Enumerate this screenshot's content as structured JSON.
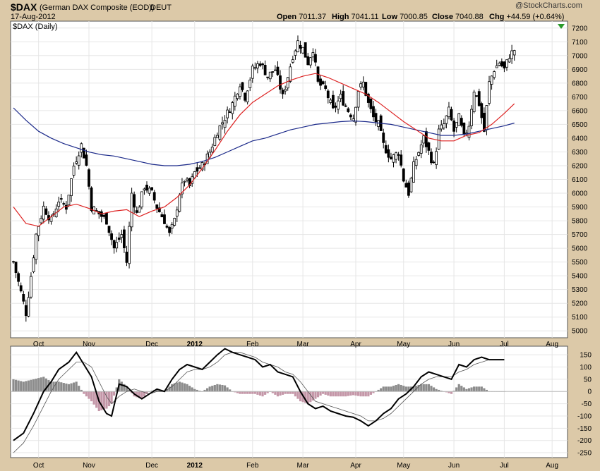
{
  "header": {
    "symbol": "$DAX",
    "name": "(German DAX Composite (EOD))",
    "exchange": "DEUT",
    "date": "17-Aug-2012",
    "open_label": "Open",
    "open": "7011.37",
    "high_label": "High",
    "high": "7041.11",
    "low_label": "Low",
    "low": "7000.85",
    "close_label": "Close",
    "close": "7040.88",
    "chg_label": "Chg",
    "chg": "+44.59 (+0.64%)",
    "watermark": "@StockCharts.com",
    "panel_label": "$DAX (Daily)"
  },
  "colors": {
    "background": "#dcc9a8",
    "panel": "#ffffff",
    "ma_fast": "#dd2222",
    "ma_slow": "#1c2a8a",
    "histogram_positive": "#8c8c8c",
    "histogram_negative": "#c497a8",
    "macd_line": "#000000",
    "signal_line": "#555555"
  },
  "chart_data": [
    {
      "type": "candlestick",
      "title": "$DAX (Daily)",
      "ylim": [
        4950,
        7250
      ],
      "yticks": [
        5000,
        5100,
        5200,
        5300,
        5400,
        5500,
        5600,
        5700,
        5800,
        5900,
        6000,
        6100,
        6200,
        6300,
        6400,
        6500,
        6600,
        6700,
        6800,
        6900,
        7000,
        7100,
        7200
      ],
      "xlabels": [
        "Oct",
        "Nov",
        "Dec",
        "2012",
        "Feb",
        "Mar",
        "Apr",
        "May",
        "Jun",
        "Jul",
        "Aug"
      ],
      "xlabel_days": [
        10,
        30,
        55,
        72,
        95,
        115,
        136,
        155,
        175,
        195,
        214
      ],
      "close_keypoints": [
        [
          0,
          5500
        ],
        [
          3,
          5280
        ],
        [
          5,
          5130
        ],
        [
          7,
          5400
        ],
        [
          9,
          5700
        ],
        [
          12,
          5900
        ],
        [
          15,
          5800
        ],
        [
          18,
          5950
        ],
        [
          21,
          5900
        ],
        [
          24,
          6200
        ],
        [
          27,
          6350
        ],
        [
          29,
          6200
        ],
        [
          31,
          5900
        ],
        [
          34,
          5850
        ],
        [
          37,
          5800
        ],
        [
          40,
          5600
        ],
        [
          43,
          5700
        ],
        [
          45,
          5500
        ],
        [
          47,
          6000
        ],
        [
          49,
          5850
        ],
        [
          52,
          6050
        ],
        [
          55,
          6000
        ],
        [
          57,
          5900
        ],
        [
          60,
          5800
        ],
        [
          62,
          5700
        ],
        [
          64,
          5800
        ],
        [
          66,
          6000
        ],
        [
          68,
          6100
        ],
        [
          70,
          6050
        ],
        [
          72,
          6150
        ],
        [
          75,
          6200
        ],
        [
          78,
          6300
        ],
        [
          81,
          6450
        ],
        [
          84,
          6550
        ],
        [
          87,
          6650
        ],
        [
          90,
          6800
        ],
        [
          92,
          6700
        ],
        [
          95,
          6900
        ],
        [
          98,
          6950
        ],
        [
          101,
          6850
        ],
        [
          104,
          6900
        ],
        [
          107,
          6700
        ],
        [
          109,
          6850
        ],
        [
          111,
          7000
        ],
        [
          113,
          7100
        ],
        [
          115,
          7050
        ],
        [
          117,
          6950
        ],
        [
          119,
          7050
        ],
        [
          121,
          6800
        ],
        [
          124,
          6750
        ],
        [
          127,
          6600
        ],
        [
          130,
          6700
        ],
        [
          133,
          6600
        ],
        [
          135,
          6550
        ],
        [
          137,
          6750
        ],
        [
          139,
          6800
        ],
        [
          141,
          6650
        ],
        [
          143,
          6550
        ],
        [
          145,
          6500
        ],
        [
          147,
          6350
        ],
        [
          150,
          6250
        ],
        [
          153,
          6300
        ],
        [
          155,
          6100
        ],
        [
          157,
          6000
        ],
        [
          159,
          6200
        ],
        [
          161,
          6300
        ],
        [
          163,
          6400
        ],
        [
          165,
          6300
        ],
        [
          167,
          6200
        ],
        [
          169,
          6450
        ],
        [
          171,
          6500
        ],
        [
          173,
          6600
        ],
        [
          175,
          6450
        ],
        [
          177,
          6550
        ],
        [
          179,
          6400
        ],
        [
          181,
          6500
        ],
        [
          183,
          6750
        ],
        [
          185,
          6650
        ],
        [
          187,
          6450
        ],
        [
          189,
          6800
        ],
        [
          191,
          6900
        ],
        [
          193,
          6950
        ],
        [
          195,
          6900
        ],
        [
          197,
          7000
        ],
        [
          199,
          7041
        ]
      ],
      "moving_average_fast": {
        "period": 50,
        "keypoints": [
          [
            0,
            5900
          ],
          [
            5,
            5780
          ],
          [
            10,
            5760
          ],
          [
            15,
            5830
          ],
          [
            20,
            5900
          ],
          [
            25,
            5920
          ],
          [
            30,
            5890
          ],
          [
            35,
            5850
          ],
          [
            40,
            5870
          ],
          [
            45,
            5880
          ],
          [
            50,
            5830
          ],
          [
            55,
            5870
          ],
          [
            60,
            5900
          ],
          [
            65,
            5970
          ],
          [
            70,
            6060
          ],
          [
            75,
            6180
          ],
          [
            80,
            6310
          ],
          [
            85,
            6450
          ],
          [
            90,
            6570
          ],
          [
            95,
            6660
          ],
          [
            100,
            6720
          ],
          [
            105,
            6780
          ],
          [
            110,
            6820
          ],
          [
            115,
            6850
          ],
          [
            120,
            6870
          ],
          [
            125,
            6840
          ],
          [
            130,
            6800
          ],
          [
            135,
            6760
          ],
          [
            140,
            6720
          ],
          [
            145,
            6660
          ],
          [
            150,
            6590
          ],
          [
            155,
            6520
          ],
          [
            160,
            6460
          ],
          [
            165,
            6400
          ],
          [
            170,
            6380
          ],
          [
            175,
            6380
          ],
          [
            180,
            6420
          ],
          [
            185,
            6440
          ],
          [
            190,
            6500
          ],
          [
            195,
            6580
          ],
          [
            199,
            6650
          ]
        ]
      },
      "moving_average_slow": {
        "period": 200,
        "keypoints": [
          [
            0,
            6620
          ],
          [
            5,
            6530
          ],
          [
            10,
            6450
          ],
          [
            15,
            6400
          ],
          [
            20,
            6360
          ],
          [
            25,
            6330
          ],
          [
            30,
            6300
          ],
          [
            35,
            6280
          ],
          [
            40,
            6270
          ],
          [
            45,
            6250
          ],
          [
            50,
            6230
          ],
          [
            55,
            6210
          ],
          [
            60,
            6200
          ],
          [
            65,
            6200
          ],
          [
            70,
            6210
          ],
          [
            75,
            6230
          ],
          [
            80,
            6260
          ],
          [
            85,
            6300
          ],
          [
            90,
            6340
          ],
          [
            95,
            6380
          ],
          [
            100,
            6400
          ],
          [
            105,
            6430
          ],
          [
            110,
            6460
          ],
          [
            115,
            6480
          ],
          [
            120,
            6500
          ],
          [
            125,
            6510
          ],
          [
            130,
            6520
          ],
          [
            135,
            6525
          ],
          [
            140,
            6520
          ],
          [
            145,
            6510
          ],
          [
            150,
            6500
          ],
          [
            155,
            6480
          ],
          [
            160,
            6460
          ],
          [
            165,
            6440
          ],
          [
            170,
            6420
          ],
          [
            175,
            6420
          ],
          [
            180,
            6430
          ],
          [
            185,
            6450
          ],
          [
            190,
            6470
          ],
          [
            195,
            6490
          ],
          [
            199,
            6510
          ]
        ]
      }
    },
    {
      "type": "line",
      "title": "",
      "ylim": [
        -270,
        185
      ],
      "yticks": [
        -250,
        -200,
        -150,
        -100,
        -50,
        0,
        50,
        100,
        150
      ],
      "xlabels": [
        "Oct",
        "Nov",
        "Dec",
        "2012",
        "Feb",
        "Mar",
        "Apr",
        "May",
        "Jun",
        "Jul",
        "Aug"
      ],
      "xlabel_days": [
        10,
        30,
        55,
        72,
        95,
        115,
        136,
        155,
        175,
        195,
        214
      ],
      "macd_keypoints": [
        [
          0,
          -200
        ],
        [
          4,
          -170
        ],
        [
          8,
          -90
        ],
        [
          12,
          0
        ],
        [
          15,
          40
        ],
        [
          18,
          90
        ],
        [
          22,
          120
        ],
        [
          25,
          160
        ],
        [
          28,
          110
        ],
        [
          31,
          60
        ],
        [
          34,
          -40
        ],
        [
          37,
          -90
        ],
        [
          39,
          -100
        ],
        [
          42,
          30
        ],
        [
          45,
          20
        ],
        [
          48,
          -10
        ],
        [
          51,
          -30
        ],
        [
          54,
          -10
        ],
        [
          57,
          10
        ],
        [
          60,
          0
        ],
        [
          63,
          50
        ],
        [
          66,
          90
        ],
        [
          69,
          110
        ],
        [
          72,
          100
        ],
        [
          75,
          90
        ],
        [
          78,
          120
        ],
        [
          81,
          150
        ],
        [
          84,
          175
        ],
        [
          87,
          160
        ],
        [
          90,
          150
        ],
        [
          93,
          140
        ],
        [
          96,
          130
        ],
        [
          99,
          100
        ],
        [
          102,
          110
        ],
        [
          105,
          80
        ],
        [
          108,
          70
        ],
        [
          111,
          60
        ],
        [
          114,
          0
        ],
        [
          117,
          -50
        ],
        [
          120,
          -70
        ],
        [
          123,
          -60
        ],
        [
          126,
          -80
        ],
        [
          129,
          -90
        ],
        [
          132,
          -100
        ],
        [
          135,
          -105
        ],
        [
          138,
          -120
        ],
        [
          141,
          -140
        ],
        [
          144,
          -120
        ],
        [
          147,
          -90
        ],
        [
          150,
          -70
        ],
        [
          153,
          -30
        ],
        [
          156,
          -10
        ],
        [
          159,
          20
        ],
        [
          162,
          60
        ],
        [
          165,
          80
        ],
        [
          168,
          70
        ],
        [
          171,
          60
        ],
        [
          174,
          50
        ],
        [
          177,
          110
        ],
        [
          180,
          100
        ],
        [
          183,
          130
        ],
        [
          186,
          140
        ],
        [
          189,
          130
        ],
        [
          192,
          130
        ],
        [
          195,
          130
        ]
      ],
      "signal_keypoints": [
        [
          0,
          -250
        ],
        [
          4,
          -210
        ],
        [
          8,
          -140
        ],
        [
          12,
          -60
        ],
        [
          15,
          0
        ],
        [
          18,
          50
        ],
        [
          22,
          90
        ],
        [
          25,
          120
        ],
        [
          28,
          120
        ],
        [
          31,
          100
        ],
        [
          34,
          40
        ],
        [
          37,
          -20
        ],
        [
          39,
          -50
        ],
        [
          42,
          -20
        ],
        [
          45,
          0
        ],
        [
          48,
          10
        ],
        [
          51,
          0
        ],
        [
          54,
          -10
        ],
        [
          57,
          0
        ],
        [
          60,
          0
        ],
        [
          63,
          20
        ],
        [
          66,
          50
        ],
        [
          69,
          80
        ],
        [
          72,
          90
        ],
        [
          75,
          90
        ],
        [
          78,
          100
        ],
        [
          81,
          120
        ],
        [
          84,
          150
        ],
        [
          87,
          160
        ],
        [
          90,
          160
        ],
        [
          93,
          150
        ],
        [
          96,
          140
        ],
        [
          99,
          120
        ],
        [
          102,
          110
        ],
        [
          105,
          100
        ],
        [
          108,
          80
        ],
        [
          111,
          70
        ],
        [
          114,
          40
        ],
        [
          117,
          0
        ],
        [
          120,
          -40
        ],
        [
          123,
          -50
        ],
        [
          126,
          -60
        ],
        [
          129,
          -70
        ],
        [
          132,
          -80
        ],
        [
          135,
          -90
        ],
        [
          138,
          -100
        ],
        [
          141,
          -120
        ],
        [
          144,
          -120
        ],
        [
          147,
          -110
        ],
        [
          150,
          -90
        ],
        [
          153,
          -60
        ],
        [
          156,
          -30
        ],
        [
          159,
          0
        ],
        [
          162,
          30
        ],
        [
          165,
          50
        ],
        [
          168,
          60
        ],
        [
          171,
          60
        ],
        [
          174,
          60
        ],
        [
          177,
          80
        ],
        [
          180,
          90
        ],
        [
          183,
          110
        ],
        [
          186,
          120
        ],
        [
          189,
          130
        ],
        [
          192,
          130
        ],
        [
          195,
          130
        ]
      ]
    }
  ]
}
